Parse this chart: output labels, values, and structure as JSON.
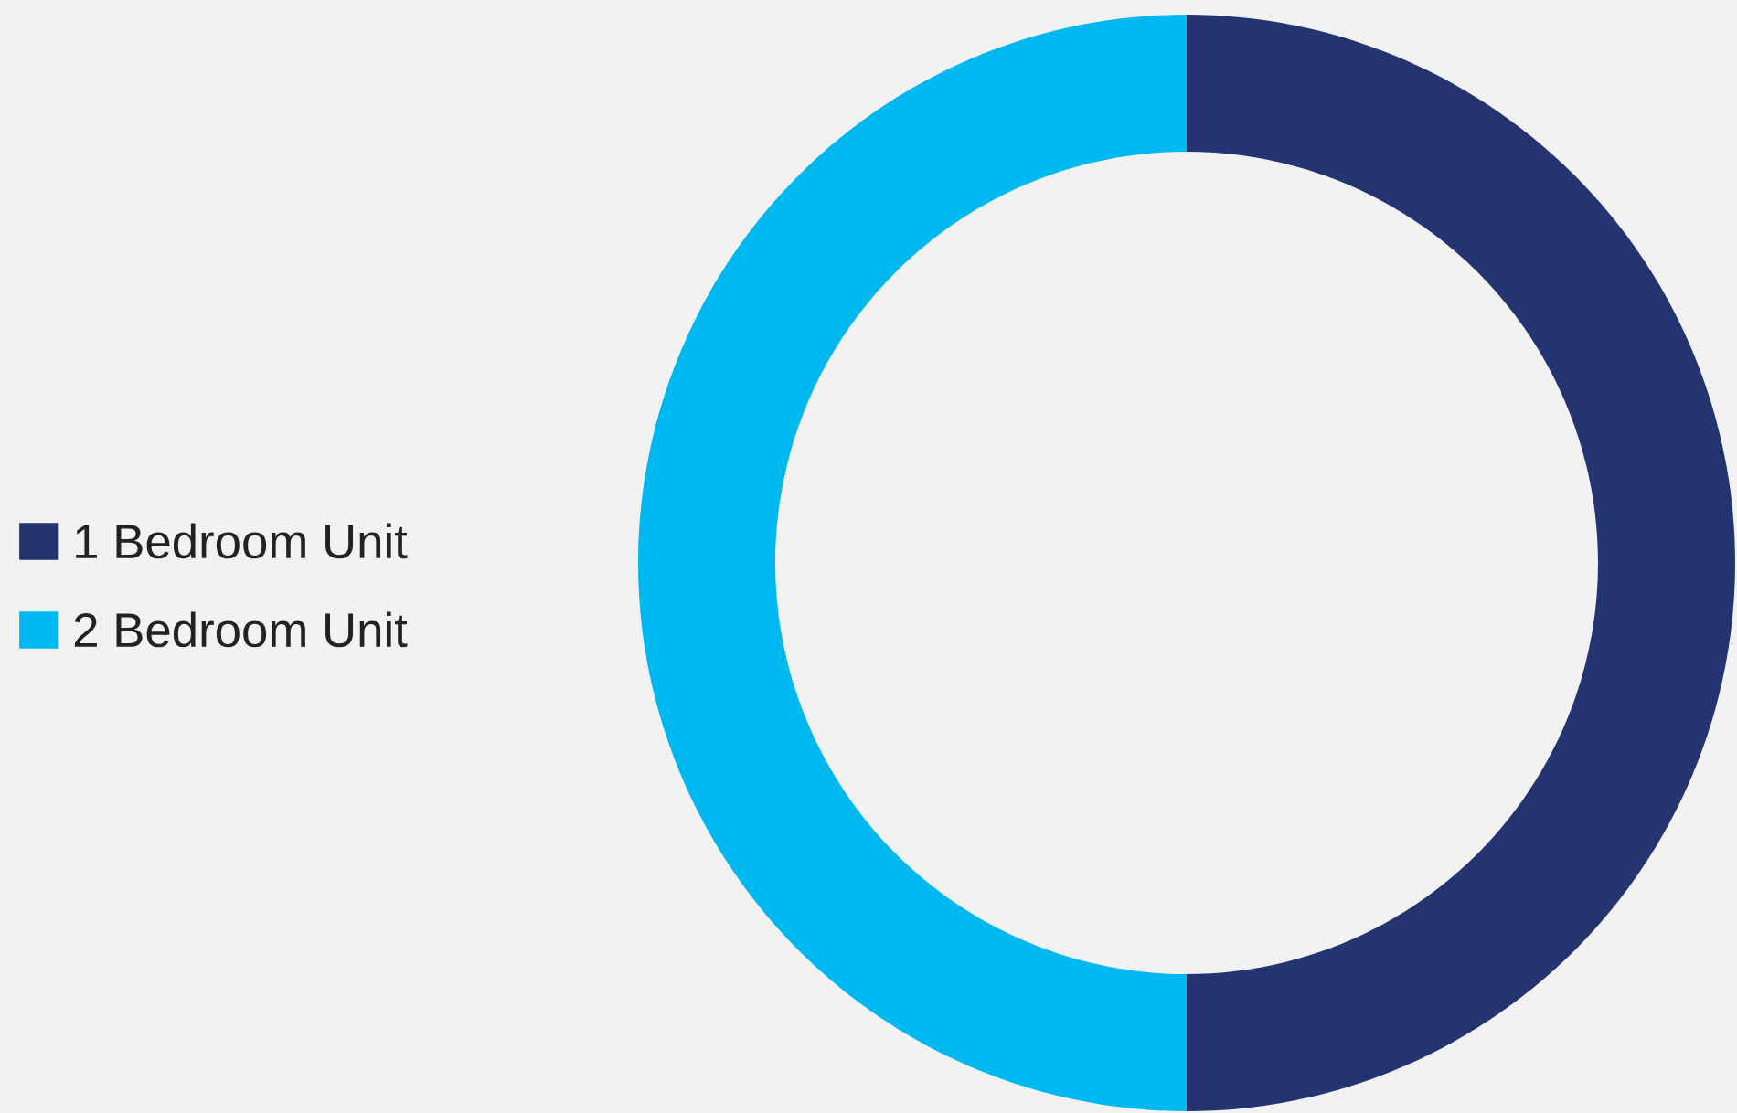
{
  "chart_data": {
    "type": "donut",
    "categories": [
      "1 Bedroom Unit",
      "2 Bedroom Unit"
    ],
    "values": [
      50,
      50
    ],
    "colors": [
      "#243470",
      "#00b8f0"
    ],
    "legend": "left"
  }
}
